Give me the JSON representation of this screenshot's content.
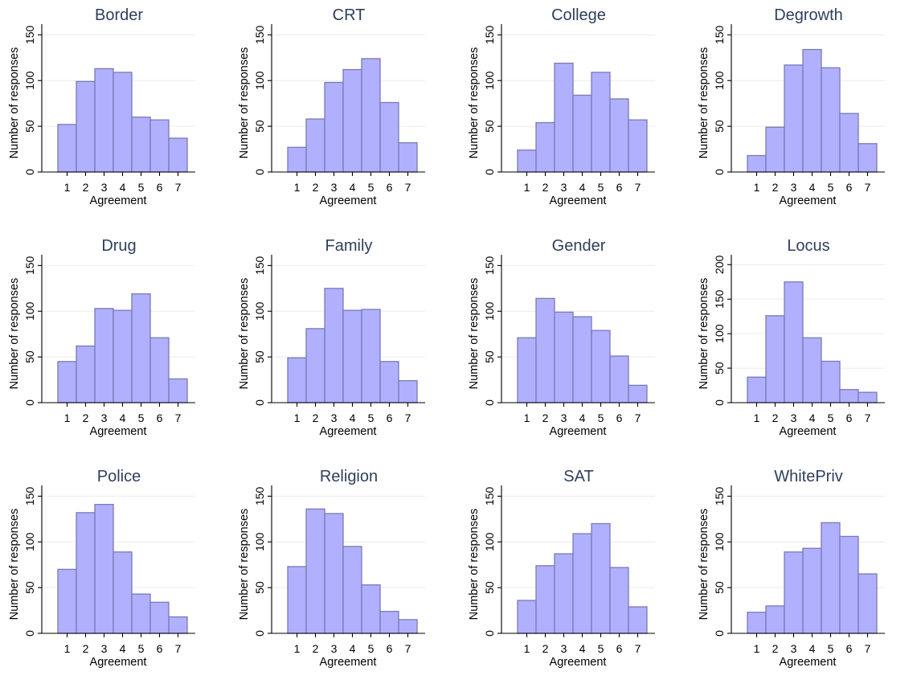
{
  "figure": {
    "common_xlabel": "Agreement",
    "common_ylabel": "Number of responses",
    "bar_color": "#b0b0fe",
    "bar_edge_color": "#7a7ab8",
    "title_color": "#2e3f5c"
  },
  "chart_data": [
    {
      "type": "bar",
      "title": "Border",
      "xlabel": "Agreement",
      "ylabel": "Number of responses",
      "categories": [
        "1",
        "2",
        "3",
        "4",
        "5",
        "6",
        "7"
      ],
      "values": [
        52,
        99,
        113,
        109,
        60,
        57,
        37
      ],
      "ylim": [
        0,
        160
      ],
      "yticks": [
        0,
        50,
        100,
        150
      ],
      "grid": true
    },
    {
      "type": "bar",
      "title": "CRT",
      "xlabel": "Agreement",
      "ylabel": "Number of responses",
      "categories": [
        "1",
        "2",
        "3",
        "4",
        "5",
        "6",
        "7"
      ],
      "values": [
        27,
        58,
        98,
        112,
        124,
        76,
        32
      ],
      "ylim": [
        0,
        160
      ],
      "yticks": [
        0,
        50,
        100,
        150
      ],
      "grid": true
    },
    {
      "type": "bar",
      "title": "College",
      "xlabel": "Agreement",
      "ylabel": "Number of responses",
      "categories": [
        "1",
        "2",
        "3",
        "4",
        "5",
        "6",
        "7"
      ],
      "values": [
        24,
        54,
        119,
        84,
        109,
        80,
        57
      ],
      "ylim": [
        0,
        160
      ],
      "yticks": [
        0,
        50,
        100,
        150
      ],
      "grid": true
    },
    {
      "type": "bar",
      "title": "Degrowth",
      "xlabel": "Agreement",
      "ylabel": "Number of responses",
      "categories": [
        "1",
        "2",
        "3",
        "4",
        "5",
        "6",
        "7"
      ],
      "values": [
        18,
        49,
        117,
        134,
        114,
        64,
        31
      ],
      "ylim": [
        0,
        160
      ],
      "yticks": [
        0,
        50,
        100,
        150
      ],
      "grid": true
    },
    {
      "type": "bar",
      "title": "Drug",
      "xlabel": "Agreement",
      "ylabel": "Number of responses",
      "categories": [
        "1",
        "2",
        "3",
        "4",
        "5",
        "6",
        "7"
      ],
      "values": [
        45,
        62,
        103,
        101,
        119,
        71,
        26
      ],
      "ylim": [
        0,
        160
      ],
      "yticks": [
        0,
        50,
        100,
        150
      ],
      "grid": true
    },
    {
      "type": "bar",
      "title": "Family",
      "xlabel": "Agreement",
      "ylabel": "Number of responses",
      "categories": [
        "1",
        "2",
        "3",
        "4",
        "5",
        "6",
        "7"
      ],
      "values": [
        49,
        81,
        125,
        101,
        102,
        45,
        24
      ],
      "ylim": [
        0,
        160
      ],
      "yticks": [
        0,
        50,
        100,
        150
      ],
      "grid": true
    },
    {
      "type": "bar",
      "title": "Gender",
      "xlabel": "Agreement",
      "ylabel": "Number of responses",
      "categories": [
        "1",
        "2",
        "3",
        "4",
        "5",
        "6",
        "7"
      ],
      "values": [
        71,
        114,
        99,
        94,
        79,
        51,
        19
      ],
      "ylim": [
        0,
        160
      ],
      "yticks": [
        0,
        50,
        100,
        150
      ],
      "grid": true
    },
    {
      "type": "bar",
      "title": "Locus",
      "xlabel": "Agreement",
      "ylabel": "Number of responses",
      "categories": [
        "1",
        "2",
        "3",
        "4",
        "5",
        "6",
        "7"
      ],
      "values": [
        37,
        126,
        175,
        94,
        60,
        19,
        15
      ],
      "ylim": [
        0,
        212
      ],
      "yticks": [
        0,
        50,
        100,
        150,
        200
      ],
      "grid": true
    },
    {
      "type": "bar",
      "title": "Police",
      "xlabel": "Agreement",
      "ylabel": "Number of responses",
      "categories": [
        "1",
        "2",
        "3",
        "4",
        "5",
        "6",
        "7"
      ],
      "values": [
        70,
        132,
        141,
        89,
        43,
        34,
        18
      ],
      "ylim": [
        0,
        160
      ],
      "yticks": [
        0,
        50,
        100,
        150
      ],
      "grid": true
    },
    {
      "type": "bar",
      "title": "Religion",
      "xlabel": "Agreement",
      "ylabel": "Number of responses",
      "categories": [
        "1",
        "2",
        "3",
        "4",
        "5",
        "6",
        "7"
      ],
      "values": [
        73,
        136,
        131,
        95,
        53,
        24,
        15
      ],
      "ylim": [
        0,
        160
      ],
      "yticks": [
        0,
        50,
        100,
        150
      ],
      "grid": true
    },
    {
      "type": "bar",
      "title": "SAT",
      "xlabel": "Agreement",
      "ylabel": "Number of responses",
      "categories": [
        "1",
        "2",
        "3",
        "4",
        "5",
        "6",
        "7"
      ],
      "values": [
        36,
        74,
        87,
        109,
        120,
        72,
        29
      ],
      "ylim": [
        0,
        160
      ],
      "yticks": [
        0,
        50,
        100,
        150
      ],
      "grid": true
    },
    {
      "type": "bar",
      "title": "WhitePriv",
      "xlabel": "Agreement",
      "ylabel": "Number of responses",
      "categories": [
        "1",
        "2",
        "3",
        "4",
        "5",
        "6",
        "7"
      ],
      "values": [
        23,
        30,
        89,
        93,
        121,
        106,
        65
      ],
      "ylim": [
        0,
        160
      ],
      "yticks": [
        0,
        50,
        100,
        150
      ],
      "grid": true
    }
  ]
}
